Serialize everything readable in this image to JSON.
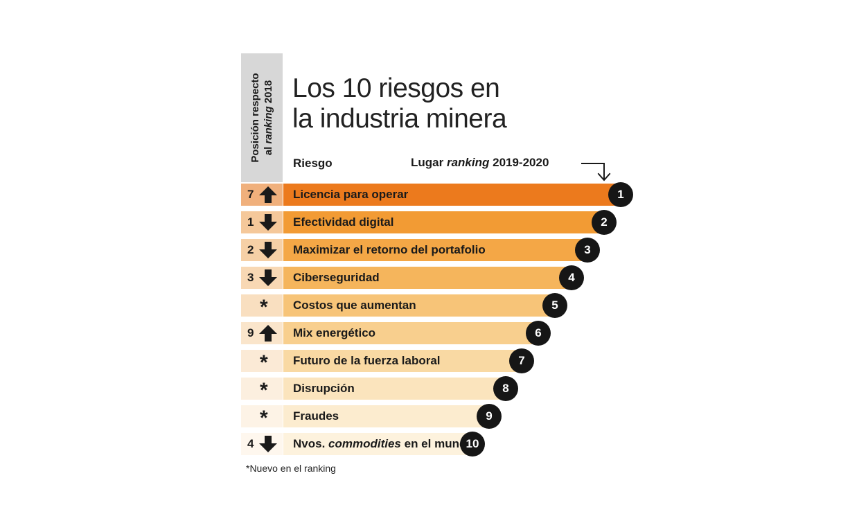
{
  "chart_data": {
    "type": "bar",
    "title": "Los 10 riesgos en la industria minera",
    "title_lines": [
      "Los 10 riesgos en",
      "la industria minera"
    ],
    "side_header_lines": [
      "Posición respecto",
      "al",
      "ranking",
      "2018"
    ],
    "column_riesgo": "Riesgo",
    "column_lugar": [
      "Lugar",
      "ranking",
      "2019-2020"
    ],
    "footnote": "*Nuevo en el ranking",
    "categories": [
      "Licencia para operar",
      "Efectividad digital",
      "Maximizar el retorno del portafolio",
      "Ciberseguridad",
      "Costos que aumentan",
      "Mix energético",
      "Futuro de la fuerza laboral",
      "Disrupción",
      "Fraudes",
      "Nvos. commodities en el mundo"
    ],
    "last_label_parts": [
      "Nvos. ",
      "commodities",
      " en el mundo"
    ],
    "series": [
      {
        "values": [
          1,
          2,
          3,
          4,
          5,
          6,
          7,
          8,
          9,
          10
        ]
      }
    ],
    "previous_position_2018": [
      "7",
      "1",
      "2",
      "3",
      "*",
      "9",
      "*",
      "*",
      "*",
      "4"
    ],
    "trend": [
      "up",
      "down",
      "down",
      "down",
      "new",
      "up",
      "new",
      "new",
      "new",
      "down"
    ],
    "bar_colors": [
      "#ec7a1d",
      "#f29b34",
      "#f4a746",
      "#f5b55c",
      "#f7c478",
      "#f8cf8e",
      "#f9d9a3",
      "#fbe4bd",
      "#fceccf",
      "#fdf2dd"
    ],
    "rank_cell_colors": [
      "#f0b07c",
      "#f5c89a",
      "#f6d0a6",
      "#f8d8b4",
      "#f9dfc0",
      "#fae5cb",
      "#fbead6",
      "#fcefdf",
      "#fdf3e6",
      "#fef7ee"
    ]
  }
}
